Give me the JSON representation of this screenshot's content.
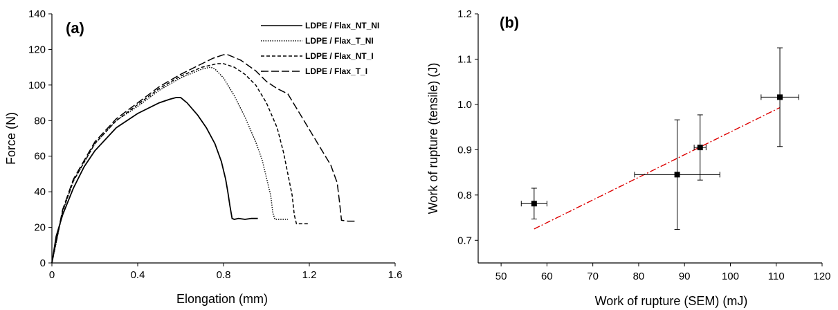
{
  "chart_data": [
    {
      "type": "line",
      "panel_label": "(a)",
      "xlabel": "Elongation (mm)",
      "ylabel": "Force (N)",
      "xlim": [
        0,
        1.6
      ],
      "ylim": [
        0,
        140
      ],
      "xticks": [
        "0",
        "0.4",
        "0.8",
        "1.2",
        "1.6"
      ],
      "yticks": [
        "0",
        "20",
        "40",
        "60",
        "80",
        "100",
        "120",
        "140"
      ],
      "grid": false,
      "legend_position": "top-right",
      "series": [
        {
          "name": "LDPE / Flax_NT_NI",
          "dash": "solid",
          "x": [
            0,
            0.02,
            0.05,
            0.1,
            0.15,
            0.2,
            0.3,
            0.4,
            0.5,
            0.55,
            0.58,
            0.6,
            0.63,
            0.68,
            0.72,
            0.76,
            0.79,
            0.81,
            0.82,
            0.83,
            0.84,
            0.85,
            0.87,
            0.9,
            0.93,
            0.96
          ],
          "y": [
            0,
            15,
            27,
            42,
            54,
            63,
            76,
            84,
            90,
            92,
            93,
            93,
            90,
            83,
            76,
            67,
            57,
            47,
            40,
            32,
            25,
            24.5,
            25,
            24.5,
            25,
            25
          ]
        },
        {
          "name": "LDPE / Flax_T_NI",
          "dash": "dotted",
          "x": [
            0,
            0.05,
            0.1,
            0.2,
            0.3,
            0.4,
            0.5,
            0.6,
            0.7,
            0.74,
            0.76,
            0.8,
            0.85,
            0.9,
            0.95,
            0.98,
            1.0,
            1.02,
            1.03,
            1.04,
            1.07,
            1.1
          ],
          "y": [
            0,
            29,
            46,
            67,
            80,
            88,
            97,
            104,
            109,
            110,
            109,
            104,
            94,
            82,
            68,
            58,
            48,
            38,
            28,
            24.5,
            24.5,
            24.5
          ]
        },
        {
          "name": "LDPE / Flax_NT_I",
          "dash": "dashed",
          "x": [
            0,
            0.05,
            0.1,
            0.2,
            0.3,
            0.4,
            0.5,
            0.6,
            0.7,
            0.77,
            0.8,
            0.85,
            0.9,
            0.95,
            1.0,
            1.05,
            1.08,
            1.1,
            1.12,
            1.13,
            1.14,
            1.16,
            1.2
          ],
          "y": [
            0,
            29,
            46,
            67,
            80,
            89,
            98,
            105,
            110,
            112,
            112,
            110,
            106,
            100,
            90,
            76,
            62,
            50,
            38,
            27,
            22,
            22,
            22
          ]
        },
        {
          "name": "LDPE / Flax_T_I",
          "dash": "long-dash",
          "x": [
            0,
            0.05,
            0.1,
            0.2,
            0.3,
            0.4,
            0.5,
            0.6,
            0.7,
            0.75,
            0.8,
            0.82,
            0.88,
            0.95,
            1.0,
            1.05,
            1.1,
            1.15,
            1.2,
            1.25,
            1.3,
            1.33,
            1.34,
            1.35,
            1.38,
            1.42
          ],
          "y": [
            0,
            30,
            47,
            68,
            81,
            90,
            99,
            106,
            112,
            115,
            117,
            117,
            114,
            108,
            102,
            98,
            95,
            85,
            75,
            65,
            55,
            45,
            35,
            24,
            23.5,
            23.5
          ]
        }
      ]
    },
    {
      "type": "scatter",
      "panel_label": "(b)",
      "xlabel": "Work of rupture (SEM) (mJ)",
      "ylabel": "Work of rupture (tensile) (J)",
      "xlim": [
        45,
        120
      ],
      "ylim": [
        0.65,
        1.2
      ],
      "xticks": [
        "50",
        "60",
        "70",
        "80",
        "90",
        "100",
        "110",
        "120"
      ],
      "yticks": [
        "0.7",
        "0.8",
        "0.9",
        "1.0",
        "1.1",
        "1.2"
      ],
      "grid": false,
      "points": [
        {
          "x": 57.2,
          "y": 0.781,
          "xerr": 2.8,
          "yerr": 0.034
        },
        {
          "x": 88.4,
          "y": 0.845,
          "xerr": 9.3,
          "yerr": 0.121
        },
        {
          "x": 93.4,
          "y": 0.905,
          "xerr": 1.3,
          "yerr": 0.072
        },
        {
          "x": 110.8,
          "y": 1.016,
          "xerr": 4.1,
          "yerr": 0.109
        }
      ],
      "trendline": {
        "x": [
          57.2,
          110.8
        ],
        "y": [
          0.725,
          0.993
        ],
        "color": "#dd0000",
        "style": "dash-dot"
      }
    }
  ]
}
